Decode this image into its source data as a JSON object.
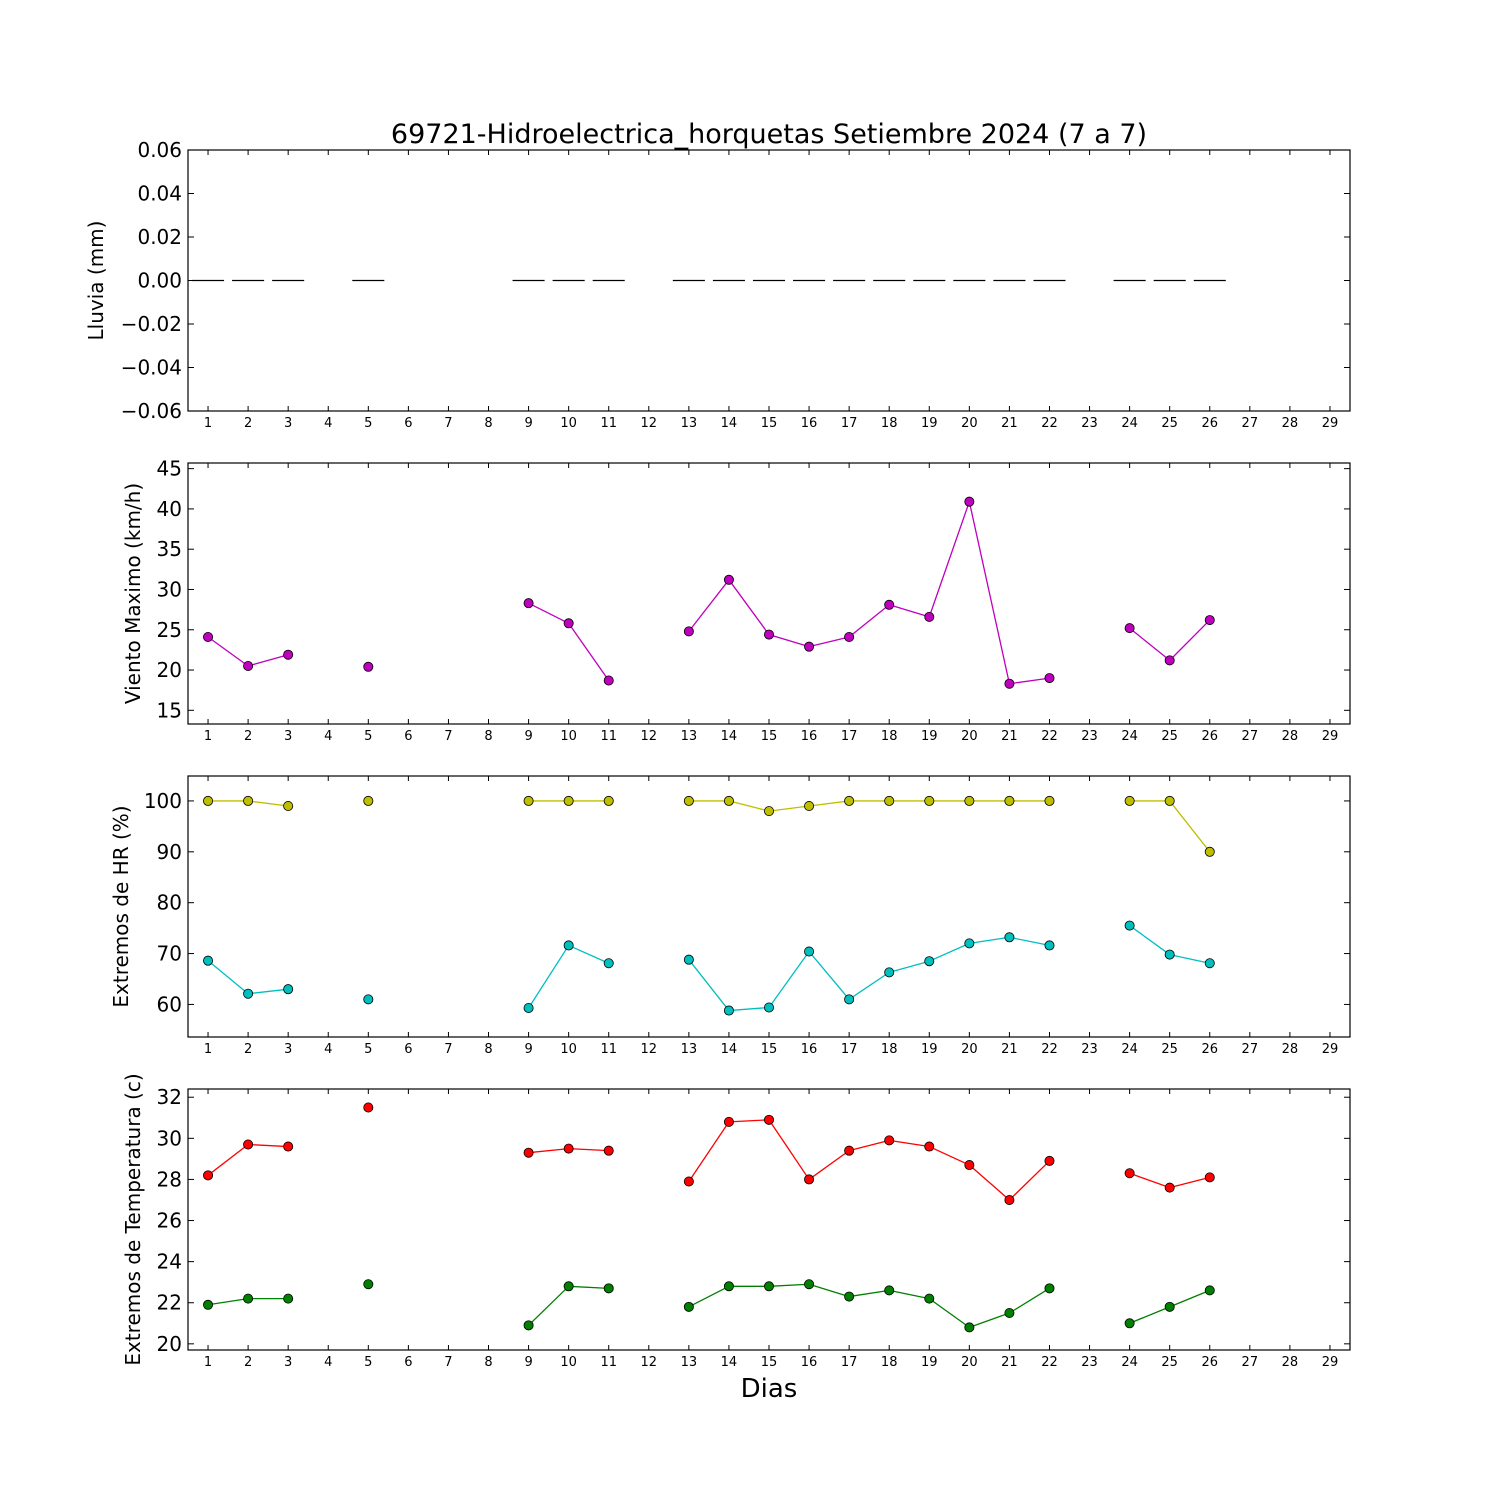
{
  "title": "69721-Hidroelectrica_horquetas Setiembre 2024  (7 a 7)",
  "xlabel": "Dias",
  "chart_data": [
    {
      "type": "line",
      "ylabel": "Lluvia (mm)",
      "xlim": [
        0.5,
        29.5
      ],
      "ylim": [
        -0.06,
        0.06
      ],
      "yticks": [
        -0.06,
        -0.04,
        -0.02,
        0.0,
        0.02,
        0.04,
        0.06
      ],
      "ytick_labels": [
        "−0.06",
        "−0.04",
        "−0.02",
        "0.00",
        "0.02",
        "0.04",
        "0.06"
      ],
      "xticks": [
        1,
        2,
        3,
        4,
        5,
        6,
        7,
        8,
        9,
        10,
        11,
        12,
        13,
        14,
        15,
        16,
        17,
        18,
        19,
        20,
        21,
        22,
        23,
        24,
        25,
        26,
        27,
        28,
        29
      ],
      "series": [
        {
          "style": "bar-segments",
          "color": "#000000",
          "x": [
            1,
            2,
            3,
            5,
            9,
            10,
            11,
            13,
            14,
            15,
            16,
            17,
            18,
            19,
            20,
            21,
            22,
            24,
            25,
            26
          ],
          "y": [
            0,
            0,
            0,
            0,
            0,
            0,
            0,
            0,
            0,
            0,
            0,
            0,
            0,
            0,
            0,
            0,
            0,
            0,
            0,
            0
          ]
        }
      ]
    },
    {
      "type": "line",
      "ylabel": "Viento Maximo (km/h)",
      "xlim": [
        0.5,
        29.5
      ],
      "ylim": [
        13.3,
        45.7
      ],
      "yticks": [
        15,
        20,
        25,
        30,
        35,
        40,
        45
      ],
      "ytick_labels": [
        "15",
        "20",
        "25",
        "30",
        "35",
        "40",
        "45"
      ],
      "xticks": [
        1,
        2,
        3,
        4,
        5,
        6,
        7,
        8,
        9,
        10,
        11,
        12,
        13,
        14,
        15,
        16,
        17,
        18,
        19,
        20,
        21,
        22,
        23,
        24,
        25,
        26,
        27,
        28,
        29
      ],
      "series": [
        {
          "color": "#bf00bf",
          "x": [
            1,
            2,
            3,
            4,
            5,
            6,
            7,
            8,
            9,
            10,
            11,
            12,
            13,
            14,
            15,
            16,
            17,
            18,
            19,
            20,
            21,
            22,
            23,
            24,
            25,
            26
          ],
          "y": [
            24.1,
            20.5,
            21.9,
            null,
            20.4,
            null,
            null,
            null,
            28.3,
            25.8,
            18.7,
            null,
            24.8,
            31.2,
            24.4,
            22.9,
            24.1,
            28.1,
            26.6,
            40.9,
            18.3,
            19.0,
            null,
            25.2,
            21.2,
            26.2
          ]
        }
      ]
    },
    {
      "type": "line",
      "ylabel": "Extremos de HR (%)",
      "xlim": [
        0.5,
        29.5
      ],
      "ylim": [
        53.6,
        104.9
      ],
      "yticks": [
        60,
        70,
        80,
        90,
        100
      ],
      "ytick_labels": [
        "60",
        "70",
        "80",
        "90",
        "100"
      ],
      "xticks": [
        1,
        2,
        3,
        4,
        5,
        6,
        7,
        8,
        9,
        10,
        11,
        12,
        13,
        14,
        15,
        16,
        17,
        18,
        19,
        20,
        21,
        22,
        23,
        24,
        25,
        26,
        27,
        28,
        29
      ],
      "series": [
        {
          "color": "#bfbf00",
          "x": [
            1,
            2,
            3,
            4,
            5,
            6,
            7,
            8,
            9,
            10,
            11,
            12,
            13,
            14,
            15,
            16,
            17,
            18,
            19,
            20,
            21,
            22,
            23,
            24,
            25,
            26
          ],
          "y": [
            100,
            100,
            99,
            null,
            100,
            null,
            null,
            null,
            100,
            100,
            100,
            null,
            100,
            100,
            98,
            99,
            100,
            100,
            100,
            100,
            100,
            100,
            null,
            100,
            100,
            90
          ]
        },
        {
          "color": "#00bfbf",
          "x": [
            1,
            2,
            3,
            4,
            5,
            6,
            7,
            8,
            9,
            10,
            11,
            12,
            13,
            14,
            15,
            16,
            17,
            18,
            19,
            20,
            21,
            22,
            23,
            24,
            25,
            26
          ],
          "y": [
            68.6,
            62.1,
            63.0,
            null,
            61.0,
            null,
            null,
            null,
            59.3,
            71.6,
            68.1,
            null,
            68.8,
            58.8,
            59.4,
            70.4,
            61.0,
            66.3,
            68.5,
            72.0,
            73.2,
            71.6,
            null,
            75.5,
            69.8,
            68.1
          ]
        }
      ]
    },
    {
      "type": "line",
      "ylabel": "Extremos de Temperatura (c)",
      "xlim": [
        0.5,
        29.5
      ],
      "ylim": [
        19.7,
        32.4
      ],
      "yticks": [
        20,
        22,
        24,
        26,
        28,
        30,
        32
      ],
      "ytick_labels": [
        "20",
        "22",
        "24",
        "26",
        "28",
        "30",
        "32"
      ],
      "xticks": [
        1,
        2,
        3,
        4,
        5,
        6,
        7,
        8,
        9,
        10,
        11,
        12,
        13,
        14,
        15,
        16,
        17,
        18,
        19,
        20,
        21,
        22,
        23,
        24,
        25,
        26,
        27,
        28,
        29
      ],
      "series": [
        {
          "color": "#ff0000",
          "x": [
            1,
            2,
            3,
            4,
            5,
            6,
            7,
            8,
            9,
            10,
            11,
            12,
            13,
            14,
            15,
            16,
            17,
            18,
            19,
            20,
            21,
            22,
            23,
            24,
            25,
            26
          ],
          "y": [
            28.2,
            29.7,
            29.6,
            null,
            31.5,
            null,
            null,
            null,
            29.3,
            29.5,
            29.4,
            null,
            27.9,
            30.8,
            30.9,
            28.0,
            29.4,
            29.9,
            29.6,
            28.7,
            27.0,
            28.9,
            null,
            28.3,
            27.6,
            28.1
          ]
        },
        {
          "color": "#008000",
          "x": [
            1,
            2,
            3,
            4,
            5,
            6,
            7,
            8,
            9,
            10,
            11,
            12,
            13,
            14,
            15,
            16,
            17,
            18,
            19,
            20,
            21,
            22,
            23,
            24,
            25,
            26
          ],
          "y": [
            21.9,
            22.2,
            22.2,
            null,
            22.9,
            null,
            null,
            null,
            20.9,
            22.8,
            22.7,
            null,
            21.8,
            22.8,
            22.8,
            22.9,
            22.3,
            22.6,
            22.2,
            20.8,
            21.5,
            22.7,
            null,
            21.0,
            21.8,
            22.6
          ]
        }
      ]
    }
  ]
}
